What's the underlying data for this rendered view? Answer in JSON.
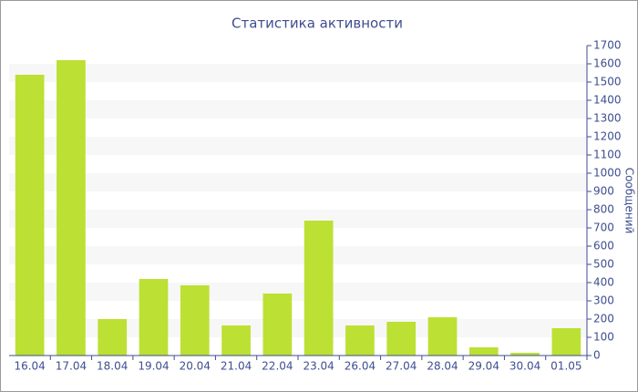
{
  "chart_data": {
    "type": "bar",
    "title": "Статистика активности",
    "y_axis_label": "Сообщений",
    "categories": [
      "16.04",
      "17.04",
      "18.04",
      "19.04",
      "20.04",
      "21.04",
      "22.04",
      "23.04",
      "26.04",
      "27.04",
      "28.04",
      "29.04",
      "30.04",
      "01.05"
    ],
    "values": [
      1540,
      1620,
      200,
      420,
      385,
      165,
      340,
      740,
      165,
      185,
      210,
      45,
      15,
      150
    ],
    "color": "#bce033",
    "ylim": [
      0,
      1700
    ],
    "yticks": [
      0,
      100,
      200,
      300,
      400,
      500,
      600,
      700,
      800,
      900,
      1000,
      1100,
      1200,
      1300,
      1400,
      1500,
      1600,
      1700
    ],
    "grid": true,
    "y_axis_side": "right"
  }
}
